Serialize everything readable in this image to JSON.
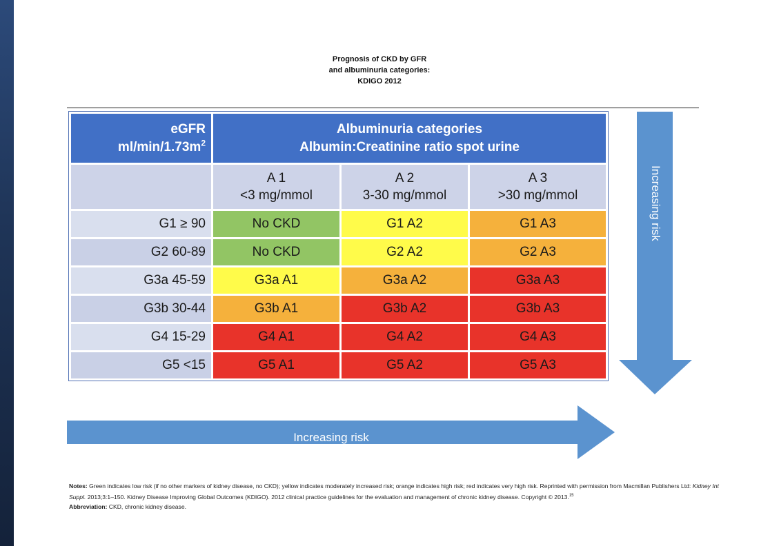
{
  "title": {
    "line1": "Prognosis of CKD by GFR",
    "line2": "and albuminuria categories:",
    "line3": "KDIGO 2012"
  },
  "header": {
    "egfr_line1": "eGFR",
    "egfr_line2": "ml/min/1.73m",
    "egfr_sup": "2",
    "alb_line1": "Albuminuria categories",
    "alb_line2": "Albumin:Creatinine ratio spot urine"
  },
  "albumin_categories": [
    {
      "code": "A 1",
      "range": "<3 mg/mmol"
    },
    {
      "code": "A 2",
      "range": "3-30 mg/mmol"
    },
    {
      "code": "A 3",
      "range": ">30 mg/mmol"
    }
  ],
  "rows": [
    {
      "label": "G1 ≥ 90",
      "cells": [
        "No CKD",
        "G1 A2",
        "G1 A3"
      ]
    },
    {
      "label": "G2 60-89",
      "cells": [
        "No CKD",
        "G2 A2",
        "G2 A3"
      ]
    },
    {
      "label": "G3a 45-59",
      "cells": [
        "G3a A1",
        "G3a A2",
        "G3a A3"
      ]
    },
    {
      "label": "G3b 30-44",
      "cells": [
        "G3b A1",
        "G3b A2",
        "G3b A3"
      ]
    },
    {
      "label": "G4 15-29",
      "cells": [
        "G4 A1",
        "G4 A2",
        "G4 A3"
      ]
    },
    {
      "label": "G5 <15",
      "cells": [
        "G5 A1",
        "G5 A2",
        "G5 A3"
      ]
    }
  ],
  "risk_colors": {
    "low": "#92c564",
    "moderate": "#fffb4a",
    "high": "#f5b13c",
    "very_high": "#e8332a"
  },
  "arrows": {
    "vertical_label": "Increasing risk",
    "horizontal_label": "Increasing risk",
    "color": "#5b93cf"
  },
  "notes": {
    "notes_heading": "Notes:",
    "notes_text_a": " Green indicates low risk (if no other markers of kidney disease, no CKD); yellow indicates moderately increased risk; orange indicates high risk; red indicates very high risk. Reprinted with permission from Macmillan Publishers Ltd: ",
    "journal": "Kidney Int Suppl.",
    "notes_text_b": " 2013;3:1–150. Kidney Disease Improving Global Outcomes (KDIGO). 2012 clinical practice guidelines for the evaluation and management of chronic kidney disease. Copyright © 2013.",
    "ref": "15",
    "abbrev_heading": "Abbreviation:",
    "abbrev_text": " CKD, chronic kidney disease."
  }
}
